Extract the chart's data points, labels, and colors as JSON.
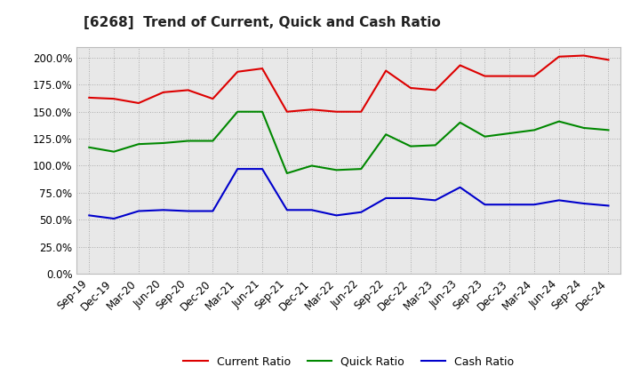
{
  "title": "[6268]  Trend of Current, Quick and Cash Ratio",
  "x_labels": [
    "Sep-19",
    "Dec-19",
    "Mar-20",
    "Jun-20",
    "Sep-20",
    "Dec-20",
    "Mar-21",
    "Jun-21",
    "Sep-21",
    "Dec-21",
    "Mar-22",
    "Jun-22",
    "Sep-22",
    "Dec-22",
    "Mar-23",
    "Jun-23",
    "Sep-23",
    "Dec-23",
    "Mar-24",
    "Jun-24",
    "Sep-24",
    "Dec-24"
  ],
  "current_ratio": [
    163,
    162,
    158,
    168,
    170,
    162,
    187,
    190,
    150,
    152,
    150,
    150,
    188,
    172,
    170,
    193,
    183,
    183,
    183,
    201,
    202,
    198
  ],
  "quick_ratio": [
    117,
    113,
    120,
    121,
    123,
    123,
    150,
    150,
    93,
    100,
    96,
    97,
    129,
    118,
    119,
    140,
    127,
    130,
    133,
    141,
    135,
    133
  ],
  "cash_ratio": [
    54,
    51,
    58,
    59,
    58,
    58,
    97,
    97,
    59,
    59,
    54,
    57,
    70,
    70,
    68,
    80,
    64,
    64,
    64,
    68,
    65,
    63
  ],
  "current_color": "#dd0000",
  "quick_color": "#008800",
  "cash_color": "#0000cc",
  "ylim": [
    0,
    210
  ],
  "yticks": [
    0,
    25,
    50,
    75,
    100,
    125,
    150,
    175,
    200
  ],
  "plot_bg_color": "#e8e8e8",
  "fig_bg_color": "#ffffff",
  "grid_color": "#999999",
  "legend_labels": [
    "Current Ratio",
    "Quick Ratio",
    "Cash Ratio"
  ],
  "title_fontsize": 11,
  "tick_fontsize": 8.5
}
